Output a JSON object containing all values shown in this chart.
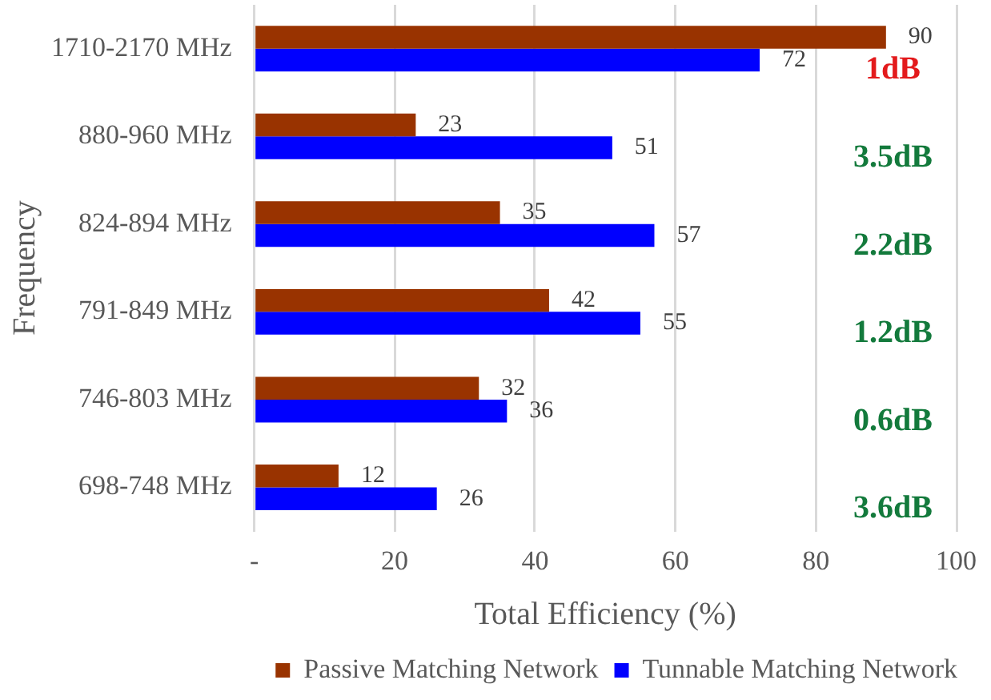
{
  "chart_data": {
    "type": "bar",
    "orientation": "horizontal",
    "xlabel": "Total Efficiency (%)",
    "ylabel": "Frequency",
    "categories": [
      "1710-2170 MHz",
      "880-960 MHz",
      "824-894 MHz",
      "791-849 MHz",
      "746-803 MHz",
      "698-748 MHz"
    ],
    "series": [
      {
        "name": "Passive Matching Network",
        "color": "#993300",
        "values": [
          90,
          23,
          35,
          42,
          32,
          12
        ]
      },
      {
        "name": "Tunnable Matching Network",
        "color": "#0000ff",
        "values": [
          72,
          51,
          57,
          55,
          36,
          26
        ]
      }
    ],
    "xlim": [
      0,
      100
    ],
    "xticks": [
      {
        "value": 0,
        "label": "-"
      },
      20,
      40,
      60,
      80,
      100
    ],
    "grid": "x",
    "legend": "bottom",
    "data_labels": true,
    "annotations": [
      "1dB",
      "3.5dB",
      "2.2dB",
      "1.2dB",
      "0.6dB",
      "3.6dB"
    ]
  }
}
